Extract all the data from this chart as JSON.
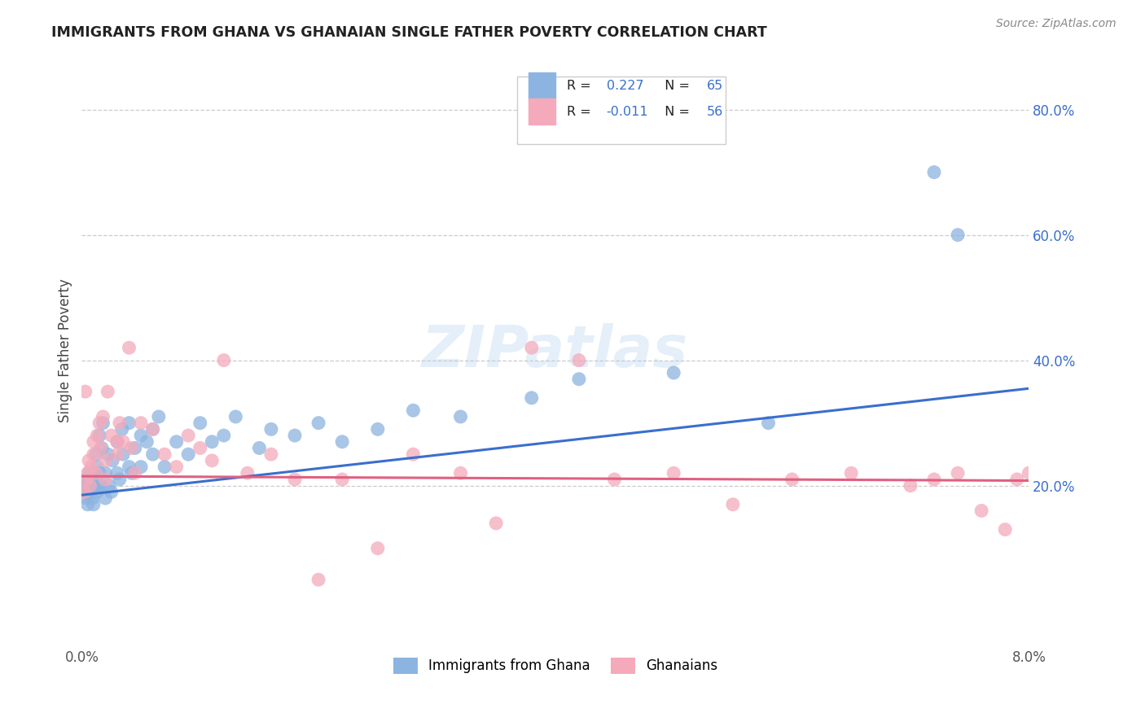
{
  "title": "IMMIGRANTS FROM GHANA VS GHANAIAN SINGLE FATHER POVERTY CORRELATION CHART",
  "source": "Source: ZipAtlas.com",
  "ylabel": "Single Father Poverty",
  "x_range": [
    0.0,
    0.08
  ],
  "y_range": [
    -0.05,
    0.88
  ],
  "blue_color": "#8CB4E0",
  "pink_color": "#F4AABB",
  "blue_line_color": "#3A6FCC",
  "pink_line_color": "#E06080",
  "series1_label": "Immigrants from Ghana",
  "series2_label": "Ghanaians",
  "watermark": "ZIPatlas",
  "legend_R1": "R =  0.227",
  "legend_N1": "N = 65",
  "legend_R2": "R = -0.011",
  "legend_N2": "N = 56",
  "blue_scatter_x": [
    0.0002,
    0.0003,
    0.0004,
    0.0004,
    0.0005,
    0.0005,
    0.0006,
    0.0006,
    0.0007,
    0.0008,
    0.0009,
    0.001,
    0.001,
    0.001,
    0.0012,
    0.0013,
    0.0013,
    0.0014,
    0.0015,
    0.0015,
    0.0016,
    0.0017,
    0.0018,
    0.002,
    0.002,
    0.0022,
    0.0023,
    0.0025,
    0.0026,
    0.003,
    0.003,
    0.0032,
    0.0034,
    0.0035,
    0.004,
    0.004,
    0.0042,
    0.0045,
    0.005,
    0.005,
    0.0055,
    0.006,
    0.006,
    0.0065,
    0.007,
    0.008,
    0.009,
    0.01,
    0.011,
    0.012,
    0.013,
    0.015,
    0.016,
    0.018,
    0.02,
    0.022,
    0.025,
    0.028,
    0.032,
    0.038,
    0.042,
    0.05,
    0.058,
    0.072,
    0.074
  ],
  "blue_scatter_y": [
    0.19,
    0.2,
    0.21,
    0.18,
    0.2,
    0.17,
    0.22,
    0.19,
    0.2,
    0.21,
    0.18,
    0.22,
    0.2,
    0.17,
    0.25,
    0.19,
    0.23,
    0.2,
    0.22,
    0.28,
    0.2,
    0.26,
    0.3,
    0.22,
    0.18,
    0.25,
    0.2,
    0.19,
    0.24,
    0.27,
    0.22,
    0.21,
    0.29,
    0.25,
    0.3,
    0.23,
    0.22,
    0.26,
    0.28,
    0.23,
    0.27,
    0.29,
    0.25,
    0.31,
    0.23,
    0.27,
    0.25,
    0.3,
    0.27,
    0.28,
    0.31,
    0.26,
    0.29,
    0.28,
    0.3,
    0.27,
    0.29,
    0.32,
    0.31,
    0.34,
    0.37,
    0.38,
    0.3,
    0.7,
    0.6
  ],
  "pink_scatter_x": [
    0.0002,
    0.0003,
    0.0004,
    0.0005,
    0.0006,
    0.0007,
    0.0008,
    0.001,
    0.001,
    0.0012,
    0.0013,
    0.0015,
    0.0016,
    0.0018,
    0.002,
    0.002,
    0.0022,
    0.0025,
    0.003,
    0.003,
    0.0032,
    0.0035,
    0.004,
    0.0042,
    0.0045,
    0.005,
    0.006,
    0.007,
    0.008,
    0.009,
    0.01,
    0.011,
    0.012,
    0.014,
    0.016,
    0.018,
    0.02,
    0.022,
    0.025,
    0.028,
    0.032,
    0.035,
    0.038,
    0.042,
    0.045,
    0.05,
    0.055,
    0.06,
    0.065,
    0.07,
    0.072,
    0.074,
    0.076,
    0.078,
    0.079,
    0.08
  ],
  "pink_scatter_y": [
    0.19,
    0.35,
    0.21,
    0.22,
    0.24,
    0.2,
    0.23,
    0.27,
    0.25,
    0.22,
    0.28,
    0.3,
    0.26,
    0.31,
    0.24,
    0.21,
    0.35,
    0.28,
    0.27,
    0.25,
    0.3,
    0.27,
    0.42,
    0.26,
    0.22,
    0.3,
    0.29,
    0.25,
    0.23,
    0.28,
    0.26,
    0.24,
    0.4,
    0.22,
    0.25,
    0.21,
    0.05,
    0.21,
    0.1,
    0.25,
    0.22,
    0.14,
    0.42,
    0.4,
    0.21,
    0.22,
    0.17,
    0.21,
    0.22,
    0.2,
    0.21,
    0.22,
    0.16,
    0.13,
    0.21,
    0.22
  ],
  "blue_line_x0": 0.0,
  "blue_line_x1": 0.08,
  "blue_line_y0": 0.185,
  "blue_line_y1": 0.355,
  "pink_line_x0": 0.0,
  "pink_line_x1": 0.08,
  "pink_line_y0": 0.215,
  "pink_line_y1": 0.208
}
